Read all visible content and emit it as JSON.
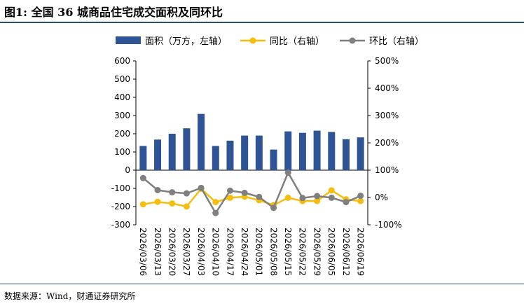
{
  "title": "图1: 全国 36 城商品住宅成交面积及同环比",
  "source": "数据来源：Wind，财通证券研究所",
  "chart_data": {
    "type": "bar+line",
    "categories": [
      "2026/03/06",
      "2026/03/13",
      "2026/03/20",
      "2026/03/27",
      "2026/04/03",
      "2026/04/10",
      "2026/04/17",
      "2026/04/24",
      "2026/05/01",
      "2026/05/08",
      "2026/05/15",
      "2026/05/22",
      "2026/05/29",
      "2026/06/05",
      "2026/06/12",
      "2026/06/19"
    ],
    "left_axis": {
      "ylim": [
        -300,
        600
      ],
      "ticks": [
        "-300",
        "-200",
        "-100",
        "0",
        "100",
        "200",
        "300",
        "400",
        "500",
        "600"
      ]
    },
    "right_axis": {
      "ylim": [
        -100,
        500
      ],
      "ticks": [
        "-100%",
        "0%",
        "100%",
        "200%",
        "300%",
        "400%",
        "500%"
      ]
    },
    "series": [
      {
        "name": "面积（万方，左轴）",
        "type": "bar",
        "axis": "left",
        "color": "#2e5496",
        "values": [
          133,
          168,
          200,
          230,
          309,
          133,
          162,
          190,
          190,
          113,
          213,
          205,
          217,
          210,
          170,
          180
        ]
      },
      {
        "name": "同比（右轴）",
        "type": "line",
        "axis": "right",
        "color": "#f5bd0f",
        "values": [
          -25,
          -16,
          -22,
          -33,
          32,
          -17,
          -1,
          3,
          -10,
          -28,
          -1,
          -13,
          -13,
          26,
          -7,
          -13
        ]
      },
      {
        "name": "环比（右轴）",
        "type": "line",
        "axis": "right",
        "color": "#7f7f7f",
        "values": [
          71,
          27,
          19,
          15,
          35,
          -57,
          25,
          17,
          2,
          -38,
          91,
          -2,
          5,
          -1,
          -17,
          6
        ]
      }
    ],
    "legend": "top"
  }
}
